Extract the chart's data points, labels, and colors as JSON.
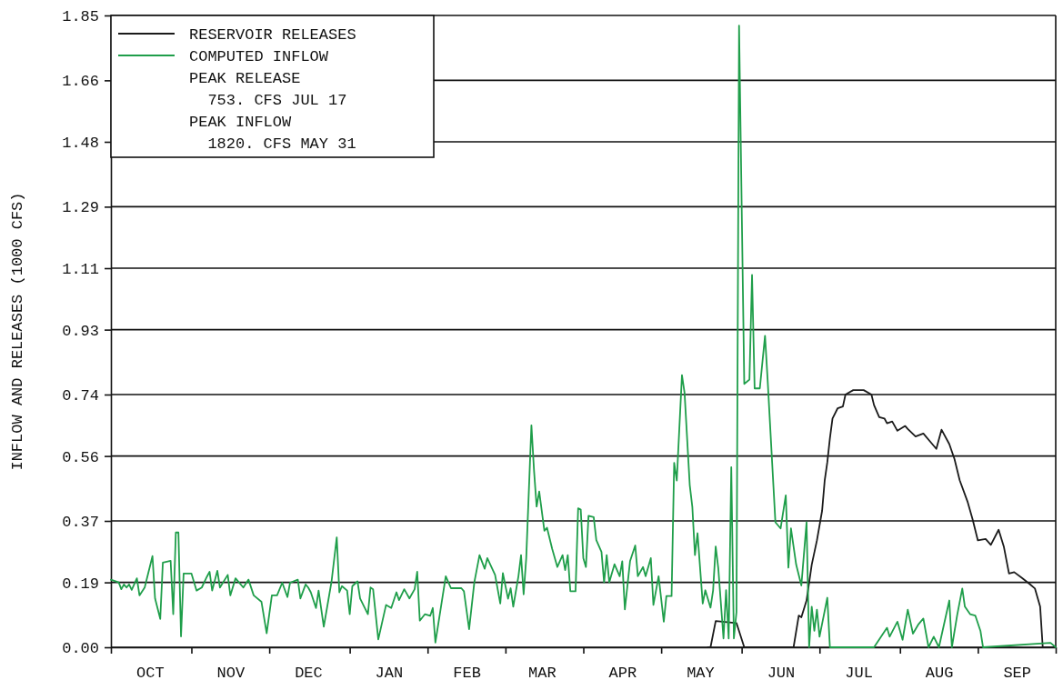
{
  "chart_data": {
    "type": "line",
    "ylabel": "INFLOW AND RELEASES (1000 CFS)",
    "categories": [
      null,
      null,
      null,
      null,
      null,
      null,
      null,
      null,
      null,
      null,
      null,
      null,
      null,
      null,
      null,
      "OCT",
      null,
      null,
      null,
      null,
      null,
      null,
      null,
      null,
      null,
      null,
      null,
      null,
      null,
      null,
      null,
      null,
      null,
      null,
      null,
      null,
      null,
      null,
      null,
      null,
      null,
      null,
      null,
      null,
      null,
      null,
      "NOV",
      null,
      null,
      null,
      null,
      null,
      null,
      null,
      null,
      null,
      null,
      null,
      null,
      null,
      null,
      null,
      null,
      null,
      null,
      null,
      null,
      null,
      null,
      null,
      null,
      null,
      null,
      null,
      null,
      null,
      "DEC",
      null,
      null,
      null,
      null,
      null,
      null,
      null,
      null,
      null,
      null,
      null,
      null,
      null,
      null,
      null,
      null,
      null,
      null,
      null,
      null,
      null,
      null,
      null,
      null,
      null,
      null,
      null,
      null,
      null,
      null,
      "JAN",
      null,
      null,
      null,
      null,
      null,
      null,
      null,
      null,
      null,
      null,
      null,
      null,
      null,
      null,
      null,
      null,
      null,
      null,
      null,
      null,
      null,
      null,
      null,
      null,
      null,
      null,
      null,
      null,
      null,
      "FEB",
      null,
      null,
      null,
      null,
      null,
      null,
      null,
      null,
      null,
      null,
      null,
      null,
      null,
      null,
      null,
      null,
      null,
      null,
      null,
      null,
      null,
      null,
      null,
      null,
      null,
      null,
      null,
      null,
      "MAR",
      null,
      null,
      null,
      null,
      null,
      null,
      null,
      null,
      null,
      null,
      null,
      null,
      null,
      null,
      null,
      null,
      null,
      null,
      null,
      null,
      null,
      null,
      null,
      null,
      null,
      null,
      null,
      null,
      null,
      null,
      "APR",
      null,
      null,
      null,
      null,
      null,
      null,
      null,
      null,
      null,
      null,
      null,
      null,
      null,
      null,
      null,
      null,
      null,
      null,
      null,
      null,
      null,
      null,
      null,
      null,
      null,
      null,
      null,
      null,
      null,
      "MAY",
      null,
      null,
      null,
      null,
      null,
      null,
      null,
      null,
      null,
      null,
      null,
      null,
      null,
      null,
      null,
      null,
      null,
      null,
      null,
      null,
      null,
      null,
      null,
      null,
      null,
      null,
      null,
      null,
      null,
      null,
      "JUN",
      null,
      null,
      null,
      null,
      null,
      null,
      null,
      null,
      null,
      null,
      null,
      null,
      null,
      null,
      null,
      null,
      null,
      null,
      null,
      null,
      null,
      null,
      null,
      null,
      null,
      null,
      null,
      null,
      null,
      "JUL",
      null,
      null,
      null,
      null,
      null,
      null,
      null,
      null,
      null,
      null,
      null,
      null,
      null,
      null,
      null,
      null,
      null,
      null,
      null,
      null,
      null,
      null,
      null,
      null,
      null,
      null,
      null,
      null,
      null,
      null,
      "AUG",
      null,
      null,
      null,
      null,
      null,
      null,
      null,
      null,
      null,
      null,
      null,
      null,
      null,
      null,
      null,
      null,
      null,
      null,
      null,
      null,
      null,
      null,
      null,
      null,
      null,
      null,
      null,
      null,
      null,
      "SEP",
      null,
      null,
      null,
      null,
      null,
      null,
      null,
      null,
      null,
      null,
      null,
      null,
      null,
      null,
      null
    ],
    "ylim": [
      0,
      1.85
    ],
    "yticks": [
      {
        "value": 0,
        "label": "0.00"
      },
      0.19,
      0.37,
      0.56,
      0.74,
      0.93,
      1.11,
      1.29,
      1.48,
      1.66,
      1.85
    ],
    "grid": "y",
    "legend": "top left",
    "annotations": [
      "PEAK RELEASE",
      "  753. CFS JUL 17",
      "PEAK INFLOW",
      "  1820. CFS MAY 31"
    ],
    "series": [
      {
        "name": "RESERVOIR RELEASES",
        "color": "#1a1a1a",
        "values": [
          null,
          null,
          null,
          null,
          null,
          null,
          null,
          null,
          null,
          null,
          null,
          null,
          null,
          null,
          null,
          null,
          null,
          null,
          null,
          null,
          null,
          null,
          null,
          null,
          null,
          null,
          null,
          null,
          null,
          null,
          null,
          null,
          null,
          null,
          null,
          null,
          null,
          null,
          null,
          null,
          null,
          null,
          null,
          null,
          null,
          null,
          null,
          null,
          null,
          null,
          null,
          null,
          null,
          null,
          null,
          null,
          null,
          null,
          null,
          null,
          null,
          null,
          null,
          null,
          null,
          null,
          null,
          null,
          null,
          null,
          null,
          null,
          null,
          null,
          null,
          null,
          null,
          null,
          null,
          null,
          null,
          null,
          null,
          null,
          null,
          null,
          null,
          null,
          null,
          null,
          null,
          null,
          null,
          null,
          null,
          null,
          null,
          null,
          null,
          null,
          null,
          null,
          null,
          null,
          null,
          null,
          null,
          null,
          null,
          null,
          null,
          null,
          null,
          null,
          null,
          null,
          null,
          null,
          null,
          null,
          null,
          null,
          null,
          null,
          null,
          null,
          null,
          null,
          null,
          null,
          null,
          null,
          null,
          null,
          null,
          null,
          null,
          null,
          null,
          null,
          null,
          null,
          null,
          null,
          null,
          null,
          null,
          null,
          null,
          null,
          null,
          null,
          null,
          null,
          null,
          null,
          null,
          null,
          null,
          null,
          null,
          null,
          null,
          null,
          null,
          null,
          null,
          null,
          null,
          null,
          null,
          null,
          null,
          null,
          null,
          null,
          null,
          null,
          null,
          null,
          null,
          null,
          null,
          null,
          null,
          null,
          null,
          null,
          null,
          null,
          null,
          null,
          null,
          null,
          null,
          null,
          null,
          null,
          null,
          null,
          null,
          null,
          null,
          null,
          null,
          null,
          null,
          null,
          null,
          null,
          null,
          null,
          null,
          null,
          null,
          null,
          null,
          null,
          null,
          null,
          null,
          null,
          null,
          null,
          null,
          null,
          null,
          null,
          null,
          null,
          0,
          0,
          null,
          0.077,
          null,
          null,
          null,
          null,
          null,
          null,
          null,
          0.071,
          null,
          null,
          0,
          null,
          null,
          null,
          null,
          null,
          null,
          null,
          null,
          null,
          null,
          null,
          null,
          null,
          null,
          null,
          null,
          null,
          0,
          0,
          null,
          0.093,
          0.088,
          null,
          0.137,
          null,
          0.242,
          null,
          0.313,
          null,
          0.4,
          0.489,
          0.542,
          0.612,
          0.67,
          null,
          0.7,
          null,
          0.705,
          0.74,
          null,
          null,
          0.753,
          null,
          null,
          null,
          0.753,
          null,
          null,
          0.74,
          0.709,
          null,
          0.674,
          null,
          0.67,
          0.656,
          null,
          0.661,
          null,
          0.634,
          null,
          null,
          0.648,
          0.639,
          null,
          null,
          0.617,
          null,
          null,
          0.626,
          null,
          null,
          0.599,
          null,
          0.581,
          null,
          0.637,
          null,
          null,
          0.595,
          null,
          0.551,
          null,
          0.489,
          null,
          null,
          0.427,
          null,
          0.374,
          null,
          0.313,
          null,
          null,
          0.317,
          null,
          0.3,
          null,
          null,
          0.344,
          null,
          0.295,
          null,
          0.216,
          null,
          0.22,
          null,
          null,
          0.203,
          null,
          null,
          0.185,
          null,
          0.172,
          null,
          0.119,
          0,
          null,
          null,
          null,
          null,
          0
        ]
      },
      {
        "name": "COMPUTED INFLOW",
        "color": "#1f9e4a",
        "values": [
          0.198,
          null,
          null,
          0.19,
          0.17,
          0.184,
          0.175,
          0.184,
          0.168,
          null,
          0.202,
          0.152,
          null,
          0.175,
          null,
          null,
          0.267,
          0.143,
          null,
          0.083,
          0.248,
          null,
          null,
          0.253,
          0.097,
          0.336,
          0.336,
          0.032,
          0.216,
          null,
          null,
          0.216,
          null,
          0.166,
          null,
          0.175,
          null,
          0.207,
          0.221,
          0.166,
          null,
          0.224,
          0.175,
          null,
          null,
          0.212,
          0.152,
          null,
          0.202,
          null,
          null,
          0.175,
          null,
          0.198,
          null,
          0.152,
          null,
          null,
          0.133,
          null,
          0.041,
          null,
          0.152,
          null,
          0.152,
          null,
          0.189,
          null,
          0.147,
          0.189,
          null,
          null,
          0.198,
          0.143,
          null,
          0.184,
          0.175,
          0.161,
          null,
          0.115,
          0.166,
          null,
          0.06,
          null,
          null,
          0.193,
          null,
          0.322,
          0.161,
          0.179,
          null,
          0.166,
          0.097,
          0.179,
          null,
          0.193,
          0.143,
          null,
          null,
          0.097,
          0.175,
          0.17,
          null,
          0.023,
          null,
          null,
          0.124,
          null,
          0.115,
          null,
          0.161,
          0.138,
          null,
          0.17,
          null,
          0.143,
          null,
          0.17,
          0.221,
          0.078,
          null,
          0.097,
          null,
          0.092,
          0.115,
          0.014,
          null,
          0.111,
          null,
          0.208,
          null,
          0.173,
          null,
          null,
          null,
          0.173,
          0.164,
          null,
          0.053,
          null,
          0.19,
          null,
          0.27,
          null,
          0.23,
          0.261,
          null,
          null,
          0.212,
          null,
          0.128,
          0.217,
          null,
          0.142,
          0.173,
          0.119,
          null,
          0.208,
          0.27,
          0.155,
          0.261,
          null,
          0.65,
          0.518,
          0.412,
          0.456,
          null,
          0.341,
          0.35,
          null,
          0.288,
          null,
          0.235,
          null,
          0.27,
          0.226,
          0.27,
          0.164,
          null,
          0.164,
          0.407,
          0.403,
          0.261,
          0.235,
          0.385,
          null,
          0.381,
          0.314,
          null,
          0.279,
          0.19,
          0.27,
          0.19,
          null,
          0.243,
          null,
          0.208,
          0.252,
          0.111,
          null,
          0.252,
          null,
          0.298,
          0.208,
          null,
          0.235,
          0.208,
          null,
          0.261,
          0.124,
          null,
          0.208,
          null,
          0.075,
          0.15,
          null,
          0.15,
          0.54,
          0.488,
          null,
          0.797,
          0.745,
          null,
          0.475,
          0.411,
          0.27,
          0.334,
          null,
          0.128,
          0.167,
          null,
          0.116,
          0.167,
          0.295,
          0.231,
          null,
          0.026,
          0.167,
          0.026,
          0.527,
          0.026,
          0.103,
          1.82,
          null,
          0.771,
          null,
          0.784,
          1.09,
          0.758,
          null,
          0.758,
          null,
          0.912,
          0.784,
          null,
          null,
          0.366,
          null,
          0.348,
          null,
          0.445,
          0.233,
          0.348,
          null,
          0.242,
          null,
          0.181,
          null,
          0.366,
          0,
          0.119,
          0.048,
          0.11,
          0.031,
          null,
          null,
          0.145,
          0,
          null,
          null,
          null,
          null,
          null,
          null,
          null,
          null,
          null,
          null,
          null,
          null,
          null,
          null,
          null,
          null,
          0,
          null,
          null,
          null,
          null,
          0.057,
          0.031,
          null,
          null,
          0.075,
          null,
          0.022,
          null,
          0.11,
          null,
          0.04,
          null,
          0.066,
          null,
          0.084,
          null,
          0,
          null,
          0.031,
          null,
          0,
          null,
          null,
          null,
          0.137,
          0,
          null,
          0.093,
          null,
          0.172,
          0.119,
          null,
          0.097,
          null,
          0.093,
          null,
          0.048,
          0,
          null,
          null,
          null,
          null,
          null,
          null,
          null,
          null,
          null,
          null,
          null,
          null,
          null,
          null,
          null,
          null,
          null,
          null,
          null,
          null,
          null,
          null,
          null,
          null,
          null,
          0.013,
          null,
          0
        ]
      }
    ]
  }
}
